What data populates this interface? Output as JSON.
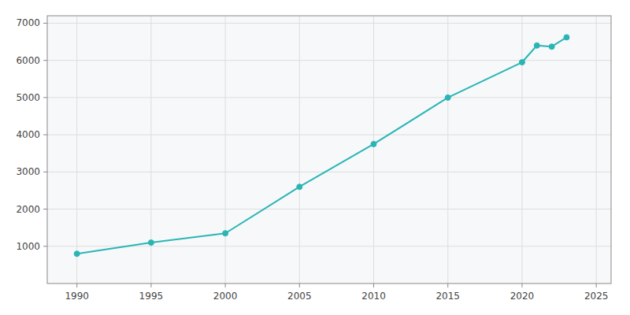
{
  "chart_data": {
    "type": "line",
    "x": [
      1990,
      1995,
      2000,
      2005,
      2010,
      2015,
      2020,
      2021,
      2022,
      2023
    ],
    "values": [
      800,
      1100,
      1350,
      2600,
      3750,
      5000,
      5950,
      6400,
      6370,
      6620
    ],
    "color": "#2ab5b5",
    "marker": "circle",
    "xlim": [
      1988,
      2026
    ],
    "ylim": [
      0,
      7200
    ],
    "xticks": [
      1990,
      1995,
      2000,
      2005,
      2010,
      2015,
      2020,
      2025
    ],
    "yticks": [
      1000,
      2000,
      3000,
      4000,
      5000,
      6000,
      7000
    ],
    "grid": true
  }
}
